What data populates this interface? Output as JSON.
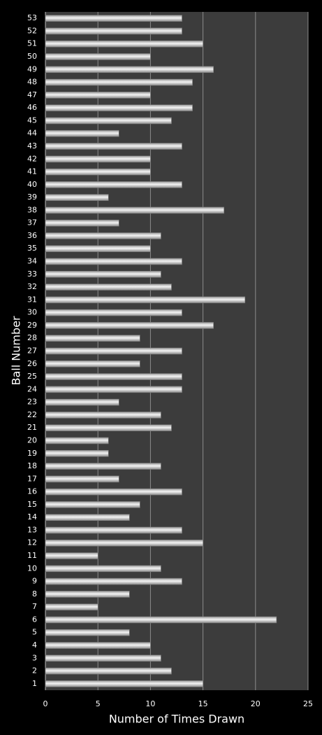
{
  "chart_data": {
    "type": "bar",
    "orientation": "horizontal",
    "x_label": "Number of Times Drawn",
    "y_label": "Ball Number",
    "categories": [
      "1",
      "2",
      "3",
      "4",
      "5",
      "6",
      "7",
      "8",
      "9",
      "10",
      "11",
      "12",
      "13",
      "14",
      "15",
      "16",
      "17",
      "18",
      "19",
      "20",
      "21",
      "22",
      "23",
      "24",
      "25",
      "26",
      "27",
      "28",
      "29",
      "30",
      "31",
      "32",
      "33",
      "34",
      "35",
      "36",
      "37",
      "38",
      "39",
      "40",
      "41",
      "42",
      "43",
      "44",
      "45",
      "46",
      "47",
      "48",
      "49",
      "50",
      "51",
      "52",
      "53"
    ],
    "values": [
      15,
      12,
      11,
      10,
      8,
      22,
      5,
      8,
      13,
      11,
      5,
      15,
      13,
      8,
      9,
      13,
      7,
      11,
      6,
      6,
      12,
      11,
      7,
      13,
      13,
      9,
      13,
      9,
      16,
      13,
      19,
      12,
      11,
      13,
      10,
      11,
      7,
      17,
      6,
      13,
      10,
      10,
      13,
      7,
      12,
      14,
      10,
      14,
      16,
      10,
      15,
      13,
      13
    ],
    "color": "#f4f4f4",
    "xlim": [
      0,
      25
    ],
    "xticks": [
      0,
      5,
      10,
      15,
      20,
      25
    ],
    "grid": true
  }
}
